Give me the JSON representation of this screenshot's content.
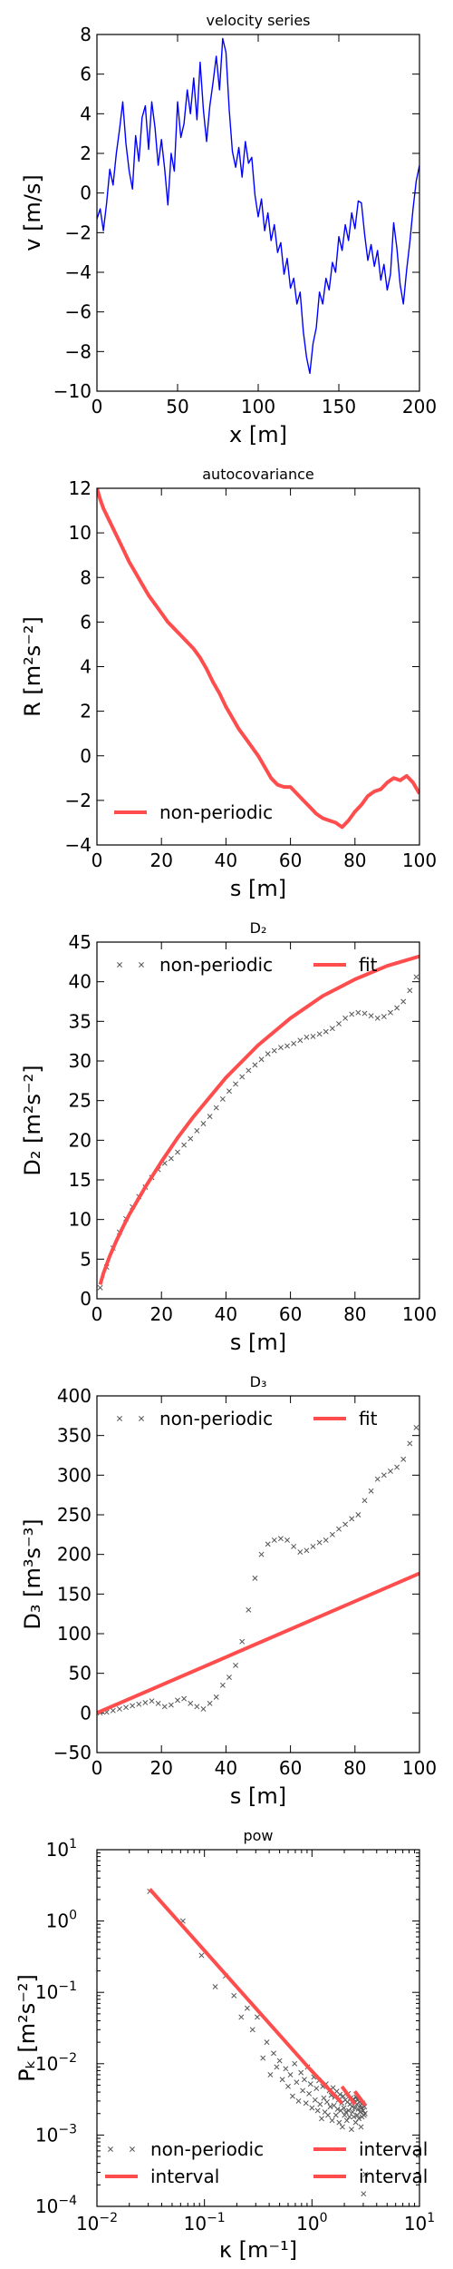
{
  "chart_data": [
    {
      "type": "line",
      "title": "velocity series",
      "xlabel": "x [m]",
      "ylabel": "v [m/s]",
      "xlim": [
        0,
        200
      ],
      "ylim": [
        -10,
        8
      ],
      "xticks": [
        "0",
        "50",
        "100",
        "150",
        "200"
      ],
      "yticks": [
        "−10",
        "−8",
        "−6",
        "−4",
        "−2",
        "0",
        "2",
        "4",
        "6",
        "8"
      ],
      "grid": false,
      "series": [
        {
          "color": "#0000ff",
          "x": [
            0,
            2,
            4,
            6,
            8,
            10,
            12,
            14,
            16,
            18,
            20,
            22,
            24,
            26,
            28,
            30,
            32,
            34,
            36,
            38,
            40,
            42,
            44,
            46,
            48,
            50,
            52,
            54,
            56,
            58,
            60,
            62,
            64,
            66,
            68,
            70,
            72,
            74,
            76,
            78,
            80,
            82,
            84,
            86,
            88,
            90,
            92,
            94,
            96,
            98,
            100,
            102,
            104,
            106,
            108,
            110,
            112,
            114,
            116,
            118,
            120,
            122,
            124,
            126,
            128,
            130,
            132,
            134,
            136,
            138,
            140,
            142,
            144,
            146,
            148,
            150,
            152,
            154,
            156,
            158,
            160,
            162,
            164,
            166,
            168,
            170,
            172,
            174,
            176,
            178,
            180,
            182,
            184,
            186,
            188,
            190,
            192,
            194,
            196,
            198,
            200
          ],
          "y": [
            -1.3,
            -0.8,
            -1.9,
            -0.5,
            1.2,
            0.4,
            2.0,
            3.2,
            4.6,
            2.5,
            1.1,
            0.2,
            2.9,
            1.6,
            3.8,
            4.4,
            2.2,
            4.6,
            3.3,
            1.4,
            2.7,
            1.2,
            -0.6,
            2.0,
            1.1,
            4.6,
            2.8,
            3.5,
            5.2,
            4.0,
            5.8,
            3.7,
            6.6,
            4.2,
            2.6,
            4.4,
            5.6,
            6.9,
            5.2,
            7.8,
            7.1,
            4.2,
            2.1,
            1.3,
            2.3,
            0.8,
            2.6,
            1.5,
            1.8,
            -0.1,
            -1.2,
            -0.3,
            -1.9,
            -1.0,
            -2.4,
            -1.6,
            -3.0,
            -2.5,
            -4.1,
            -3.3,
            -4.8,
            -4.3,
            -5.6,
            -5.0,
            -7.0,
            -8.3,
            -9.1,
            -7.6,
            -6.8,
            -5.0,
            -5.6,
            -4.3,
            -4.9,
            -3.5,
            -4.0,
            -2.2,
            -2.9,
            -1.6,
            -2.4,
            -1.0,
            -1.8,
            -0.4,
            -0.5,
            -2.1,
            -3.4,
            -2.6,
            -3.7,
            -2.9,
            -4.4,
            -3.6,
            -4.9,
            -4.1,
            -1.5,
            -2.8,
            -4.6,
            -5.6,
            -3.9,
            -2.5,
            -0.8,
            0.6,
            1.4
          ]
        }
      ]
    },
    {
      "type": "line",
      "title": "autocovariance",
      "xlabel": "s [m]",
      "ylabel": "R [m²s⁻²]",
      "xlim": [
        0,
        100
      ],
      "ylim": [
        -4,
        12
      ],
      "xticks": [
        "0",
        "20",
        "40",
        "60",
        "80",
        "100"
      ],
      "yticks": [
        "−4",
        "−2",
        "0",
        "2",
        "4",
        "6",
        "8",
        "10",
        "12"
      ],
      "grid": false,
      "legend_position": "lower-left",
      "series": [
        {
          "name": "non-periodic",
          "color": "#ff4d4d",
          "x": [
            0,
            1,
            2,
            4,
            6,
            8,
            10,
            12,
            14,
            16,
            18,
            20,
            22,
            24,
            26,
            28,
            30,
            32,
            34,
            36,
            38,
            40,
            42,
            44,
            46,
            48,
            50,
            52,
            54,
            56,
            58,
            60,
            62,
            64,
            66,
            68,
            70,
            72,
            74,
            76,
            78,
            80,
            82,
            84,
            86,
            88,
            90,
            92,
            94,
            96,
            98,
            100
          ],
          "y": [
            12.0,
            11.5,
            11.1,
            10.5,
            9.9,
            9.3,
            8.7,
            8.2,
            7.7,
            7.2,
            6.8,
            6.4,
            6.0,
            5.7,
            5.4,
            5.1,
            4.8,
            4.4,
            3.9,
            3.3,
            2.8,
            2.2,
            1.7,
            1.2,
            0.8,
            0.4,
            0.0,
            -0.5,
            -1.0,
            -1.3,
            -1.4,
            -1.4,
            -1.7,
            -2.0,
            -2.3,
            -2.6,
            -2.8,
            -2.9,
            -3.0,
            -3.2,
            -2.9,
            -2.5,
            -2.2,
            -1.8,
            -1.6,
            -1.5,
            -1.2,
            -1.0,
            -1.1,
            -0.9,
            -1.2,
            -1.7
          ]
        }
      ]
    },
    {
      "type": "scatter",
      "title": "D₂",
      "xlabel": "s [m]",
      "ylabel": "D₂ [m²s⁻²]",
      "xlim": [
        0,
        100
      ],
      "ylim": [
        0,
        45
      ],
      "xticks": [
        "0",
        "20",
        "40",
        "60",
        "80",
        "100"
      ],
      "yticks": [
        "0",
        "5",
        "10",
        "15",
        "20",
        "25",
        "30",
        "35",
        "40",
        "45"
      ],
      "grid": false,
      "legend_position": "top",
      "series": [
        {
          "name": "non-periodic",
          "marker": "x",
          "color": "#555555",
          "x": [
            1,
            3,
            5,
            7,
            9,
            11,
            13,
            15,
            17,
            19,
            21,
            23,
            25,
            27,
            29,
            31,
            33,
            35,
            37,
            39,
            41,
            43,
            45,
            47,
            49,
            51,
            53,
            55,
            57,
            59,
            61,
            63,
            65,
            67,
            69,
            71,
            73,
            75,
            77,
            79,
            81,
            83,
            85,
            87,
            89,
            91,
            93,
            95,
            97,
            99
          ],
          "y": [
            1.4,
            4.0,
            6.4,
            8.4,
            10.1,
            11.6,
            12.9,
            14.1,
            15.3,
            16.3,
            17.1,
            17.7,
            18.5,
            19.4,
            20.2,
            21.2,
            22.1,
            23.0,
            24.1,
            25.2,
            26.2,
            27.1,
            28.0,
            28.8,
            29.5,
            30.2,
            30.9,
            31.3,
            31.7,
            31.9,
            32.2,
            32.6,
            33.0,
            33.1,
            33.4,
            33.7,
            34.1,
            34.7,
            35.4,
            35.9,
            36.1,
            36.0,
            35.7,
            35.4,
            35.6,
            36.1,
            36.7,
            37.5,
            38.9,
            40.6
          ]
        },
        {
          "name": "fit",
          "color": "#ff4d4d",
          "x": [
            1,
            2,
            4,
            6,
            8,
            10,
            15,
            20,
            25,
            30,
            40,
            50,
            60,
            70,
            80,
            90,
            100
          ],
          "y": [
            1.8,
            3.2,
            5.4,
            7.3,
            9.0,
            10.6,
            14.1,
            17.3,
            20.3,
            23.0,
            27.9,
            32.0,
            35.4,
            38.2,
            40.3,
            42.0,
            43.2
          ]
        }
      ]
    },
    {
      "type": "scatter",
      "title": "D₃",
      "xlabel": "s [m]",
      "ylabel": "D₃ [m³s⁻³]",
      "xlim": [
        0,
        100
      ],
      "ylim": [
        -50,
        400
      ],
      "xticks": [
        "0",
        "20",
        "40",
        "60",
        "80",
        "100"
      ],
      "yticks": [
        "−50",
        "0",
        "50",
        "100",
        "150",
        "200",
        "250",
        "300",
        "350",
        "400"
      ],
      "grid": false,
      "legend_position": "top",
      "series": [
        {
          "name": "non-periodic",
          "marker": "x",
          "color": "#555555",
          "x": [
            1,
            3,
            5,
            7,
            9,
            11,
            13,
            15,
            17,
            19,
            21,
            23,
            25,
            27,
            29,
            31,
            33,
            35,
            37,
            39,
            41,
            43,
            45,
            47,
            49,
            51,
            53,
            55,
            57,
            59,
            61,
            63,
            65,
            67,
            69,
            71,
            73,
            75,
            77,
            79,
            81,
            83,
            85,
            87,
            89,
            91,
            93,
            95,
            97,
            99
          ],
          "y": [
            0,
            1,
            3,
            5,
            7,
            9,
            11,
            13,
            15,
            12,
            8,
            10,
            16,
            18,
            12,
            8,
            5,
            12,
            20,
            35,
            45,
            60,
            90,
            130,
            170,
            200,
            213,
            218,
            220,
            218,
            210,
            203,
            205,
            210,
            215,
            218,
            225,
            232,
            238,
            245,
            250,
            268,
            280,
            295,
            300,
            305,
            310,
            320,
            340,
            360
          ]
        },
        {
          "name": "fit",
          "color": "#ff4d4d",
          "x": [
            0,
            100
          ],
          "y": [
            0,
            176
          ]
        }
      ]
    },
    {
      "type": "scatter",
      "title": "pow",
      "xlabel": "κ [m⁻¹]",
      "ylabel": "Pₖ [m²s⁻²]",
      "xscale": "log",
      "yscale": "log",
      "xlim": [
        0.01,
        10
      ],
      "ylim": [
        0.0001,
        10
      ],
      "grid": false,
      "legend_position": "lower",
      "series": [
        {
          "name": "non-periodic",
          "marker": "x",
          "color": "#555555",
          "x": [
            0.031,
            0.063,
            0.094,
            0.126,
            0.157,
            0.188,
            0.22,
            0.25,
            0.28,
            0.31,
            0.35,
            0.38,
            0.41,
            0.44,
            0.47,
            0.5,
            0.53,
            0.57,
            0.6,
            0.63,
            0.66,
            0.69,
            0.72,
            0.75,
            0.79,
            0.82,
            0.85,
            0.88,
            0.91,
            0.94,
            0.97,
            1.0,
            1.04,
            1.07,
            1.1,
            1.13,
            1.16,
            1.19,
            1.23,
            1.26,
            1.29,
            1.32,
            1.35,
            1.38,
            1.41,
            1.45,
            1.48,
            1.51,
            1.54,
            1.57,
            1.6,
            1.63,
            1.67,
            1.7,
            1.73,
            1.76,
            1.79,
            1.82,
            1.85,
            1.89,
            1.92,
            1.95,
            1.98,
            2.01,
            2.04,
            2.07,
            2.11,
            2.14,
            2.17,
            2.2,
            2.23,
            2.26,
            2.29,
            2.33,
            2.36,
            2.39,
            2.42,
            2.45,
            2.48,
            2.51,
            2.55,
            2.58,
            2.61,
            2.64,
            2.67,
            2.7,
            2.73,
            2.77,
            2.8,
            2.83,
            2.86,
            2.89,
            2.92,
            2.95,
            2.99,
            3.02,
            3.05,
            3.08,
            3.11,
            3.14
          ],
          "y": [
            2.6,
            1.0,
            0.33,
            0.12,
            0.17,
            0.09,
            0.045,
            0.06,
            0.03,
            0.045,
            0.012,
            0.02,
            0.007,
            0.014,
            0.009,
            0.011,
            0.006,
            0.0085,
            0.0048,
            0.007,
            0.0035,
            0.01,
            0.0055,
            0.003,
            0.0075,
            0.0042,
            0.006,
            0.0028,
            0.009,
            0.0038,
            0.0052,
            0.0024,
            0.0065,
            0.0031,
            0.0045,
            0.0022,
            0.0058,
            0.0027,
            0.0017,
            0.0048,
            0.0033,
            0.0021,
            0.0052,
            0.0029,
            0.0019,
            0.0042,
            0.0025,
            0.0036,
            0.0016,
            0.0046,
            0.0026,
            0.0034,
            0.0019,
            0.0041,
            0.0023,
            0.0031,
            0.0015,
            0.0037,
            0.0022,
            0.0028,
            0.0013,
            0.0035,
            0.0024,
            0.0019,
            0.0031,
            0.0021,
            0.0016,
            0.0029,
            0.0038,
            0.0022,
            0.0018,
            0.0027,
            0.0033,
            0.0012,
            0.0025,
            0.0021,
            0.0032,
            0.0018,
            0.0029,
            0.0024,
            0.0015,
            0.0034,
            0.0027,
            0.0019,
            0.0031,
            0.0023,
            0.0017,
            0.0029,
            0.0021,
            0.0026,
            0.0013,
            0.0024,
            0.0018,
            0.0028,
            0.0022,
            0.00015,
            0.0019,
            0.0025,
            0.002,
            0.00028
          ]
        },
        {
          "name": "interval",
          "color": "#ff4d4d",
          "x": [
            0.031,
            0.95
          ],
          "y": [
            2.8,
            0.0085
          ]
        },
        {
          "name": "interval",
          "color": "#ff4d4d",
          "x": [
            0.95,
            1.9
          ],
          "y": [
            0.0085,
            0.0028
          ]
        },
        {
          "name": "interval",
          "color": "#ff4d4d",
          "x": [
            1.9,
            2.5
          ],
          "y": [
            0.0048,
            0.0027
          ]
        },
        {
          "name": "interval",
          "color": "#ff4d4d",
          "x": [
            2.5,
            3.14
          ],
          "y": [
            0.0041,
            0.0026
          ]
        }
      ]
    }
  ]
}
